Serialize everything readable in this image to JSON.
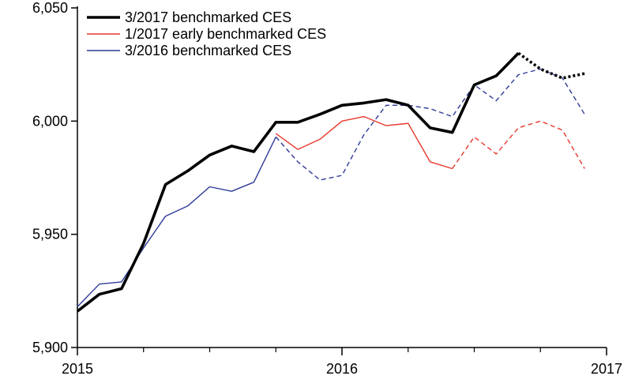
{
  "chart_data": {
    "type": "line",
    "xlim": [
      2015,
      2017
    ],
    "ylim": [
      5900,
      6050
    ],
    "y_ticks": [
      {
        "value": 5900,
        "label": "5,900"
      },
      {
        "value": 5950,
        "label": "5,950"
      },
      {
        "value": 6000,
        "label": "6,000"
      },
      {
        "value": 6050,
        "label": "6,050"
      }
    ],
    "x_ticks": [
      {
        "value": 2015,
        "label": "2015"
      },
      {
        "value": 2016,
        "label": "2016"
      },
      {
        "value": 2017,
        "label": "2017"
      }
    ],
    "x_minor_ticks_per_year": 4,
    "grid": false,
    "legend_position": "top-left",
    "series": [
      {
        "name": "3/2017 benchmarked CES",
        "color": "#000000",
        "style": "thick",
        "segments": [
          {
            "dash": "solid",
            "points": [
              [
                2015.0,
                5916
              ],
              [
                2015.083,
                5923.5
              ],
              [
                2015.167,
                5926
              ],
              [
                2015.25,
                5946
              ],
              [
                2015.333,
                5972
              ],
              [
                2015.417,
                5978
              ],
              [
                2015.5,
                5985
              ],
              [
                2015.583,
                5989
              ],
              [
                2015.667,
                5986.5
              ],
              [
                2015.75,
                5999.5
              ],
              [
                2015.833,
                5999.5
              ],
              [
                2015.917,
                6003
              ],
              [
                2016.0,
                6007
              ],
              [
                2016.083,
                6008
              ],
              [
                2016.167,
                6009.5
              ],
              [
                2016.25,
                6007
              ],
              [
                2016.333,
                5997
              ],
              [
                2016.417,
                5995
              ],
              [
                2016.5,
                6016
              ],
              [
                2016.583,
                6020
              ],
              [
                2016.667,
                6030
              ]
            ]
          },
          {
            "dash": "dotted",
            "points": [
              [
                2016.667,
                6030
              ],
              [
                2016.75,
                6023
              ],
              [
                2016.833,
                6019
              ],
              [
                2016.917,
                6021
              ]
            ]
          }
        ]
      },
      {
        "name": "1/2017 early benchmarked CES",
        "color": "#e8372c",
        "style": "thin",
        "segments": [
          {
            "dash": "solid",
            "points": [
              [
                2015.75,
                5994.5
              ],
              [
                2015.833,
                5987.5
              ],
              [
                2015.917,
                5992
              ],
              [
                2016.0,
                6000
              ],
              [
                2016.083,
                6002
              ],
              [
                2016.167,
                5998
              ],
              [
                2016.25,
                5999
              ],
              [
                2016.333,
                5982
              ],
              [
                2016.417,
                5979
              ]
            ]
          },
          {
            "dash": "dashed",
            "points": [
              [
                2016.417,
                5979
              ],
              [
                2016.5,
                5993
              ],
              [
                2016.583,
                5985.5
              ],
              [
                2016.667,
                5997
              ],
              [
                2016.75,
                6000
              ],
              [
                2016.833,
                5996
              ],
              [
                2016.917,
                5979
              ]
            ]
          }
        ]
      },
      {
        "name": "3/2016 benchmarked CES",
        "color": "#2f3a9a",
        "style": "thin",
        "segments": [
          {
            "dash": "solid",
            "points": [
              [
                2015.0,
                5918
              ],
              [
                2015.083,
                5928
              ],
              [
                2015.167,
                5929
              ],
              [
                2015.25,
                5944
              ],
              [
                2015.333,
                5958
              ],
              [
                2015.417,
                5962.5
              ],
              [
                2015.5,
                5971
              ],
              [
                2015.583,
                5969
              ],
              [
                2015.667,
                5973
              ],
              [
                2015.75,
                5993
              ]
            ]
          },
          {
            "dash": "dashed",
            "points": [
              [
                2015.75,
                5993
              ],
              [
                2015.833,
                5982
              ],
              [
                2015.917,
                5974
              ],
              [
                2016.0,
                5976
              ],
              [
                2016.083,
                5994
              ],
              [
                2016.167,
                6007
              ],
              [
                2016.25,
                6007
              ],
              [
                2016.333,
                6005.5
              ],
              [
                2016.417,
                6002
              ],
              [
                2016.5,
                6016
              ],
              [
                2016.583,
                6009
              ],
              [
                2016.667,
                6020.5
              ],
              [
                2016.75,
                6023
              ],
              [
                2016.833,
                6019
              ],
              [
                2016.917,
                6003
              ]
            ]
          }
        ]
      }
    ]
  }
}
